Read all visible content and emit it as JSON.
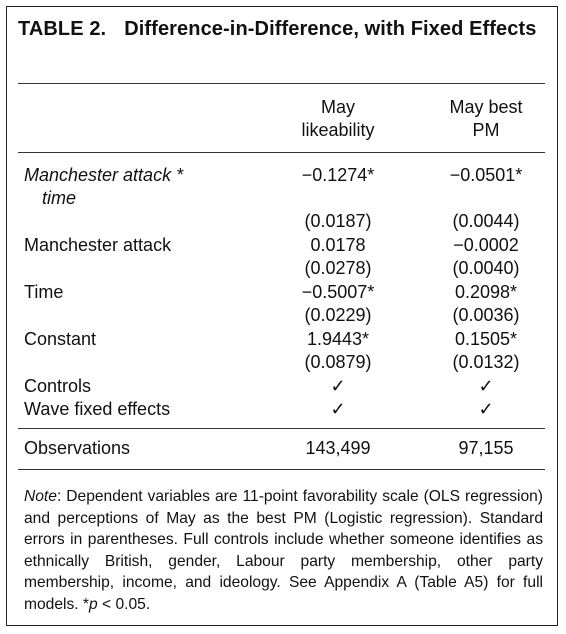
{
  "table": {
    "title_number": "TABLE 2.",
    "title_text": "Difference-in-Difference, with Fixed Effects",
    "columns": [
      {
        "line1": "May",
        "line2": "likeability"
      },
      {
        "line1": "May best",
        "line2": "PM"
      }
    ],
    "rows": {
      "interaction": {
        "label_line1": "Manchester attack *",
        "label_line2": "time",
        "coef": [
          "−0.1274*",
          "−0.0501*"
        ],
        "se": [
          "(0.0187)",
          "(0.0044)"
        ]
      },
      "attack": {
        "label": "Manchester attack",
        "coef": [
          "0.0178",
          "−0.0002"
        ],
        "se": [
          "(0.0278)",
          "(0.0040)"
        ]
      },
      "time": {
        "label": "Time",
        "coef": [
          "−0.5007*",
          "0.2098*"
        ],
        "se": [
          "(0.0229)",
          "(0.0036)"
        ]
      },
      "constant": {
        "label": "Constant",
        "coef": [
          "1.9443*",
          "0.1505*"
        ],
        "se": [
          "(0.0879)",
          "(0.0132)"
        ]
      },
      "controls": {
        "label": "Controls",
        "marks": [
          "✓",
          "✓"
        ]
      },
      "wave": {
        "label": "Wave fixed effects",
        "marks": [
          "✓",
          "✓"
        ]
      },
      "observations": {
        "label": "Observations",
        "values": [
          "143,499",
          "97,155"
        ]
      }
    },
    "note": {
      "label": "Note",
      "text": ": Dependent variables are 11-point favorability scale (OLS regression) and perceptions of May as the best PM (Logistic regression). Standard errors in parentheses. Full controls include whether someone identifies as ethnically British, gender, Labour party membership, other party membership, income, and ideology. See Appendix A (Table A5) for full models. *",
      "p_symbol": "p",
      "tail": " < 0.05."
    }
  }
}
